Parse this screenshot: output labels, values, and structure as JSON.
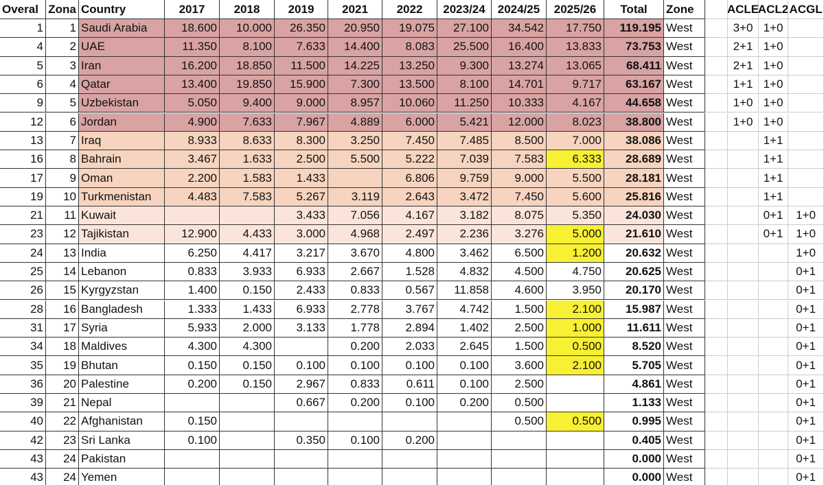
{
  "table": {
    "header": [
      "Overal",
      "Zona",
      "Country",
      "2017",
      "2018",
      "2019",
      "2021",
      "2022",
      "2023/24",
      "2024/25",
      "2025/26",
      "Total",
      "Zone",
      "ACLE",
      "ACL2",
      "ACGL"
    ],
    "rows": [
      [
        "1",
        "1",
        "Saudi Arabia",
        "18.600",
        "10.000",
        "26.350",
        "20.950",
        "19.075",
        "27.100",
        "34.542",
        "17.750",
        "119.195",
        "West",
        "3+0",
        "1+0",
        null
      ],
      [
        "4",
        "2",
        "UAE",
        "11.350",
        "8.100",
        "7.633",
        "14.400",
        "8.083",
        "25.500",
        "16.400",
        "13.833",
        "73.753",
        "West",
        "2+1",
        "1+0",
        null
      ],
      [
        "5",
        "3",
        "Iran",
        "16.200",
        "18.850",
        "11.500",
        "14.225",
        "13.250",
        "9.300",
        "13.274",
        "13.065",
        "68.411",
        "West",
        "2+1",
        "1+0",
        null
      ],
      [
        "6",
        "4",
        "Qatar",
        "13.400",
        "19.850",
        "15.900",
        "7.300",
        "13.500",
        "8.100",
        "14.701",
        "9.717",
        "63.167",
        "West",
        "1+1",
        "1+0",
        null
      ],
      [
        "9",
        "5",
        "Uzbekistan",
        "5.050",
        "9.400",
        "9.000",
        "8.957",
        "10.060",
        "11.250",
        "10.333",
        "4.167",
        "44.658",
        "West",
        "1+0",
        "1+0",
        null
      ],
      [
        "12",
        "6",
        "Jordan",
        "4.900",
        "7.633",
        "7.967",
        "4.889",
        "6.000",
        "5.421",
        "12.000",
        "8.023",
        "38.800",
        "West",
        "1+0",
        "1+0",
        null
      ],
      [
        "13",
        "7",
        "Iraq",
        "8.933",
        "8.633",
        "8.300",
        "3.250",
        "7.450",
        "7.485",
        "8.500",
        "7.000",
        "38.086",
        "West",
        null,
        "1+1",
        null
      ],
      [
        "16",
        "8",
        "Bahrain",
        "3.467",
        "1.633",
        "2.500",
        "5.500",
        "5.222",
        "7.039",
        "7.583",
        "6.333",
        "28.689",
        "West",
        null,
        "1+1",
        null
      ],
      [
        "17",
        "9",
        "Oman",
        "2.200",
        "1.583",
        "1.433",
        null,
        "6.806",
        "9.759",
        "9.000",
        "5.500",
        "28.181",
        "West",
        null,
        "1+1",
        null
      ],
      [
        "19",
        "10",
        "Turkmenistan",
        "4.483",
        "7.583",
        "5.267",
        "3.119",
        "2.643",
        "3.472",
        "7.450",
        "5.600",
        "25.816",
        "West",
        null,
        "1+1",
        null
      ],
      [
        "21",
        "11",
        "Kuwait",
        null,
        null,
        "3.433",
        "7.056",
        "4.167",
        "3.182",
        "8.075",
        "5.350",
        "24.030",
        "West",
        null,
        "0+1",
        "1+0"
      ],
      [
        "23",
        "12",
        "Tajikistan",
        "12.900",
        "4.433",
        "3.000",
        "4.968",
        "2.497",
        "2.236",
        "3.276",
        "5.000",
        "21.610",
        "West",
        null,
        "0+1",
        "1+0"
      ],
      [
        "24",
        "13",
        "India",
        "6.250",
        "4.417",
        "3.217",
        "3.670",
        "4.800",
        "3.462",
        "6.500",
        "1.200",
        "20.632",
        "West",
        null,
        null,
        "1+0"
      ],
      [
        "25",
        "14",
        "Lebanon",
        "0.833",
        "3.933",
        "6.933",
        "2.667",
        "1.528",
        "4.832",
        "4.500",
        "4.750",
        "20.625",
        "West",
        null,
        null,
        "0+1"
      ],
      [
        "26",
        "15",
        "Kyrgyzstan",
        "1.400",
        "0.150",
        "2.433",
        "0.833",
        "0.567",
        "11.858",
        "4.600",
        "3.950",
        "20.170",
        "West",
        null,
        null,
        "0+1"
      ],
      [
        "28",
        "16",
        "Bangladesh",
        "1.333",
        "1.433",
        "6.933",
        "2.778",
        "3.767",
        "4.742",
        "1.500",
        "2.100",
        "15.987",
        "West",
        null,
        null,
        "0+1"
      ],
      [
        "31",
        "17",
        "Syria",
        "5.933",
        "2.000",
        "3.133",
        "1.778",
        "2.894",
        "1.402",
        "2.500",
        "1.000",
        "11.611",
        "West",
        null,
        null,
        "0+1"
      ],
      [
        "34",
        "18",
        "Maldives",
        "4.300",
        "4.300",
        null,
        "0.200",
        "2.033",
        "2.645",
        "1.500",
        "0.500",
        "8.520",
        "West",
        null,
        null,
        "0+1"
      ],
      [
        "35",
        "19",
        "Bhutan",
        "0.150",
        "0.150",
        "0.100",
        "0.100",
        "0.100",
        "0.100",
        "3.600",
        "2.100",
        "5.705",
        "West",
        null,
        null,
        "0+1"
      ],
      [
        "36",
        "20",
        "Palestine",
        "0.200",
        "0.150",
        "2.967",
        "0.833",
        "0.611",
        "0.100",
        "2.500",
        null,
        "4.861",
        "West",
        null,
        null,
        "0+1"
      ],
      [
        "39",
        "21",
        "Nepal",
        null,
        null,
        "0.667",
        "0.200",
        "0.100",
        "0.200",
        "0.500",
        null,
        "1.133",
        "West",
        null,
        null,
        "0+1"
      ],
      [
        "40",
        "22",
        "Afghanistan",
        "0.150",
        null,
        null,
        null,
        null,
        null,
        "0.500",
        "0.500",
        "0.995",
        "West",
        null,
        null,
        "0+1"
      ],
      [
        "42",
        "23",
        "Sri Lanka",
        "0.100",
        null,
        "0.350",
        "0.100",
        "0.200",
        null,
        null,
        null,
        "0.405",
        "West",
        null,
        null,
        "0+1"
      ],
      [
        "43",
        "24",
        "Pakistan",
        null,
        null,
        null,
        null,
        null,
        null,
        null,
        null,
        "0.000",
        "West",
        null,
        null,
        "0+1"
      ],
      [
        "43",
        "24",
        "Yemen",
        null,
        null,
        null,
        null,
        null,
        null,
        null,
        null,
        "0.000",
        "West",
        null,
        null,
        "0+1"
      ]
    ]
  }
}
